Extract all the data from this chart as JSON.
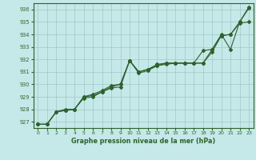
{
  "xlabel": "Graphe pression niveau de la mer (hPa)",
  "xlim": [
    -0.5,
    23.5
  ],
  "ylim": [
    926.5,
    936.5
  ],
  "yticks": [
    927,
    928,
    929,
    930,
    931,
    932,
    933,
    934,
    935,
    936
  ],
  "xticks": [
    0,
    1,
    2,
    3,
    4,
    5,
    6,
    7,
    8,
    9,
    10,
    11,
    12,
    13,
    14,
    15,
    16,
    17,
    18,
    19,
    20,
    21,
    22,
    23
  ],
  "background_color": "#c5e8e8",
  "grid_color": "#a0c8c8",
  "line_color": "#2d622d",
  "series1": {
    "x": [
      0,
      1,
      2,
      3,
      4,
      5,
      6,
      7,
      8,
      9,
      10,
      11,
      12,
      13,
      14,
      15,
      16,
      17,
      18,
      19,
      20,
      21,
      22,
      23
    ],
    "y": [
      926.8,
      926.8,
      927.8,
      927.9,
      928.0,
      928.9,
      929.0,
      929.4,
      929.7,
      929.8,
      931.9,
      930.9,
      931.1,
      931.5,
      931.6,
      931.7,
      931.7,
      931.7,
      931.7,
      932.8,
      933.9,
      934.0,
      935.0,
      936.2
    ]
  },
  "series2": {
    "x": [
      0,
      1,
      2,
      3,
      4,
      5,
      6,
      7,
      8,
      9,
      10,
      11,
      12,
      13,
      14,
      15,
      16,
      17,
      18,
      19,
      20,
      21,
      22,
      23
    ],
    "y": [
      926.8,
      926.8,
      927.8,
      927.9,
      928.0,
      929.0,
      929.1,
      929.4,
      929.8,
      930.0,
      931.9,
      931.0,
      931.2,
      931.5,
      931.7,
      931.7,
      931.7,
      931.7,
      931.7,
      932.6,
      933.9,
      934.0,
      934.9,
      935.0
    ]
  },
  "series3": {
    "x": [
      0,
      1,
      2,
      3,
      4,
      5,
      6,
      7,
      8,
      9,
      10,
      11,
      12,
      13,
      14,
      15,
      16,
      17,
      18,
      19,
      20,
      21,
      22,
      23
    ],
    "y": [
      926.8,
      926.8,
      927.8,
      928.0,
      928.0,
      929.0,
      929.2,
      929.5,
      929.9,
      930.0,
      931.9,
      931.0,
      931.2,
      931.6,
      931.7,
      931.7,
      931.7,
      931.7,
      932.7,
      932.8,
      934.0,
      932.8,
      935.0,
      936.1
    ]
  }
}
